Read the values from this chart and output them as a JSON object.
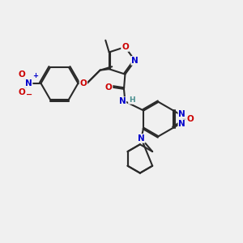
{
  "bg_color": "#f0f0f0",
  "bond_color": "#2a2a2a",
  "bond_width": 1.5,
  "atom_colors": {
    "O": "#cc0000",
    "N": "#0000cc",
    "C": "#2a2a2a",
    "H": "#4a9090"
  },
  "fs": 7.5,
  "fs_small": 6.0,
  "dbo": 0.08
}
